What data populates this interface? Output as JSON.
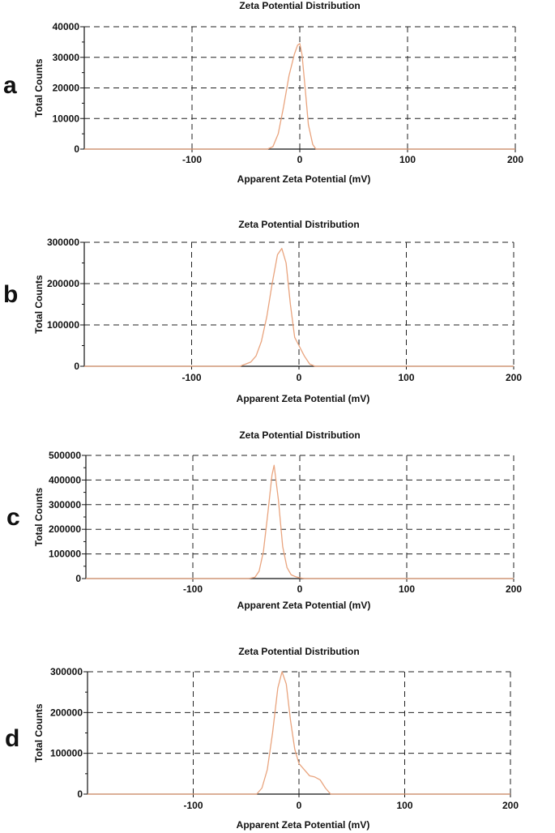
{
  "chart_data": [
    {
      "panel": "a",
      "type": "line",
      "title": "Zeta Potential Distribution",
      "xlabel": "Apparent Zeta Potential (mV)",
      "ylabel": "Total Counts",
      "xlim": [
        -200,
        200
      ],
      "ylim": [
        0,
        40000
      ],
      "xticks": [
        -100,
        0,
        100,
        200
      ],
      "yticks": [
        0,
        10000,
        20000,
        30000,
        40000
      ],
      "grid": true,
      "line_color": "#e9a47e",
      "series": [
        {
          "x": [
            -200,
            -30,
            -25,
            -20,
            -15,
            -10,
            -5,
            -2,
            0,
            2,
            5,
            8,
            12,
            15,
            200
          ],
          "y": [
            0,
            0,
            800,
            5000,
            14000,
            24000,
            31000,
            34000,
            34500,
            31000,
            20000,
            8000,
            1500,
            0,
            0
          ]
        }
      ]
    },
    {
      "panel": "b",
      "type": "line",
      "title": "Zeta Potential Distribution",
      "xlabel": "Apparent Zeta Potential (mV)",
      "ylabel": "Total Counts",
      "xlim": [
        -200,
        200
      ],
      "ylim": [
        0,
        300000
      ],
      "xticks": [
        -100,
        0,
        100,
        200
      ],
      "yticks": [
        0,
        100000,
        200000,
        300000
      ],
      "grid": true,
      "line_color": "#e9a47e",
      "series": [
        {
          "x": [
            -200,
            -55,
            -45,
            -40,
            -35,
            -30,
            -25,
            -20,
            -16,
            -12,
            -8,
            -4,
            0,
            5,
            10,
            15,
            200
          ],
          "y": [
            0,
            0,
            10000,
            25000,
            60000,
            120000,
            200000,
            270000,
            285000,
            250000,
            150000,
            70000,
            50000,
            25000,
            5000,
            0,
            0
          ]
        }
      ]
    },
    {
      "panel": "c",
      "type": "line",
      "title": "Zeta Potential Distribution",
      "xlabel": "Apparent Zeta Potential (mV)",
      "ylabel": "Total Counts",
      "xlim": [
        -200,
        200
      ],
      "ylim": [
        0,
        500000
      ],
      "xticks": [
        -100,
        0,
        100,
        200
      ],
      "yticks": [
        0,
        100000,
        200000,
        300000,
        400000,
        500000
      ],
      "grid": true,
      "line_color": "#e9a47e",
      "series": [
        {
          "x": [
            -200,
            -48,
            -42,
            -38,
            -34,
            -30,
            -26,
            -24,
            -20,
            -16,
            -12,
            -8,
            -4,
            0,
            5,
            200
          ],
          "y": [
            0,
            0,
            5000,
            30000,
            110000,
            260000,
            420000,
            460000,
            320000,
            130000,
            45000,
            15000,
            8000,
            3000,
            0,
            0
          ]
        }
      ]
    },
    {
      "panel": "d",
      "type": "line",
      "title": "Zeta Potential Distribution",
      "xlabel": "Apparent Zeta Potential (mV)",
      "ylabel": "Total Counts",
      "xlim": [
        -200,
        200
      ],
      "ylim": [
        0,
        300000
      ],
      "xticks": [
        -100,
        0,
        100,
        200
      ],
      "yticks": [
        0,
        100000,
        200000,
        300000
      ],
      "grid": true,
      "line_color": "#e9a47e",
      "series": [
        {
          "x": [
            -200,
            -40,
            -35,
            -30,
            -25,
            -20,
            -16,
            -12,
            -8,
            -4,
            0,
            5,
            10,
            15,
            20,
            25,
            30,
            200
          ],
          "y": [
            0,
            0,
            15000,
            60000,
            150000,
            260000,
            300000,
            270000,
            180000,
            110000,
            75000,
            60000,
            45000,
            42000,
            35000,
            15000,
            0,
            0
          ]
        }
      ]
    }
  ]
}
